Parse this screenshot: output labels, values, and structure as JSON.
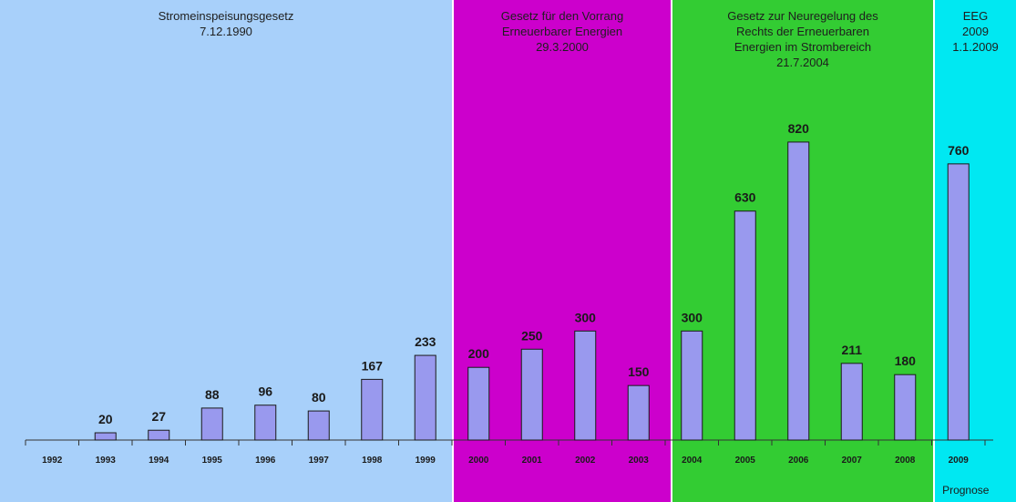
{
  "colors": {
    "background": "#ffffff",
    "bar_fill": "#9999ee",
    "bar_stroke": "#1a1a1a",
    "axis": "#333333"
  },
  "chart_data": {
    "type": "bar",
    "title": "",
    "xlabel": "",
    "ylabel": "",
    "ylim": [
      0,
      880
    ],
    "grid": false,
    "legend": "none",
    "categories": [
      "1992",
      "1993",
      "1994",
      "1995",
      "1996",
      "1997",
      "1998",
      "1999",
      "2000",
      "2001",
      "2002",
      "2003",
      "2004",
      "2005",
      "2006",
      "2007",
      "2008",
      "2009"
    ],
    "values": [
      null,
      20,
      27,
      88,
      96,
      80,
      167,
      233,
      200,
      250,
      300,
      150,
      300,
      630,
      820,
      211,
      180,
      760
    ],
    "value_labels": [
      "",
      "20",
      "27",
      "88",
      "96",
      "80",
      "167",
      "233",
      "200",
      "250",
      "300",
      "150",
      "300",
      "630",
      "820",
      "211",
      "180",
      "760"
    ],
    "periods": [
      {
        "title_lines": [
          "Stromeinspeisungsgesetz",
          "7.12.1990"
        ],
        "color": "#a8d0fa",
        "from": "1992",
        "to": "1999"
      },
      {
        "title_lines": [
          "Gesetz für den Vorrang",
          "Erneuerbarer Energien",
          "29.3.2000"
        ],
        "color": "#cc00cc",
        "from": "2000",
        "to": "2003"
      },
      {
        "title_lines": [
          "Gesetz zur Neuregelung des",
          "Rechts der Erneuerbaren",
          "Energien im Strombereich",
          "21.7.2004"
        ],
        "color": "#33cc33",
        "from": "2004",
        "to": "2008"
      },
      {
        "title_lines": [
          "EEG",
          "2009",
          "1.1.2009"
        ],
        "color": "#00e8f2",
        "from": "2009",
        "to": "2009"
      }
    ],
    "annotations": [
      {
        "category": "2009",
        "text": "Prognose"
      }
    ]
  }
}
